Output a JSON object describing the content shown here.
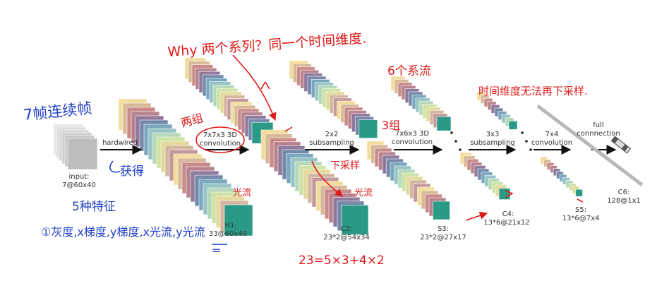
{
  "stages": {
    "input": {
      "label": "input:",
      "dims": "7@60x40"
    },
    "h1": {
      "label": "H1:",
      "dims": "33@60x40"
    },
    "c2": {
      "label": "C2:",
      "dims": "23*2@54x34"
    },
    "s3": {
      "label": "S3:",
      "dims": "23*2@27x17"
    },
    "c4": {
      "label": "C4:",
      "dims": "13*6@21x12"
    },
    "s5": {
      "label": "S5:",
      "dims": "13*6@7x4"
    },
    "c6": {
      "label": "C6:",
      "dims": "128@1x1"
    }
  },
  "operations": {
    "hardwired": "hardwired",
    "conv3d_1": [
      "7x7x3 3D",
      "convolution"
    ],
    "subsample_1": [
      "2x2",
      "subsampling"
    ],
    "conv3d_2": [
      "7x6x3 3D",
      "convolution"
    ],
    "subsample_2": [
      "3x3",
      "subsampling"
    ],
    "conv_3": [
      "7x4",
      "convolution"
    ],
    "fc": [
      "full",
      "connnection"
    ]
  },
  "annotations": {
    "top_question": "Why 两个系列？同一个时间维度.",
    "six_streams": "6个系流",
    "time_dim_note": "时间维度无法再下采样.",
    "two_groups": "两组",
    "three_groups": "3组",
    "seven_frames": "7帧连续帧",
    "obtain": "获得",
    "five_features": "5种特征",
    "feature_list": "①灰度,x梯度,y梯度,x光流,y光流",
    "downsample": "下采样",
    "optical_flow": "光流",
    "optical_flow_2": "光流",
    "formula": "23=5×3+4×2",
    "eq_mark": "="
  },
  "colors": {
    "ink_blue": "#2040c8",
    "ink_red": "#e01818",
    "teal": "#2a9a86"
  }
}
